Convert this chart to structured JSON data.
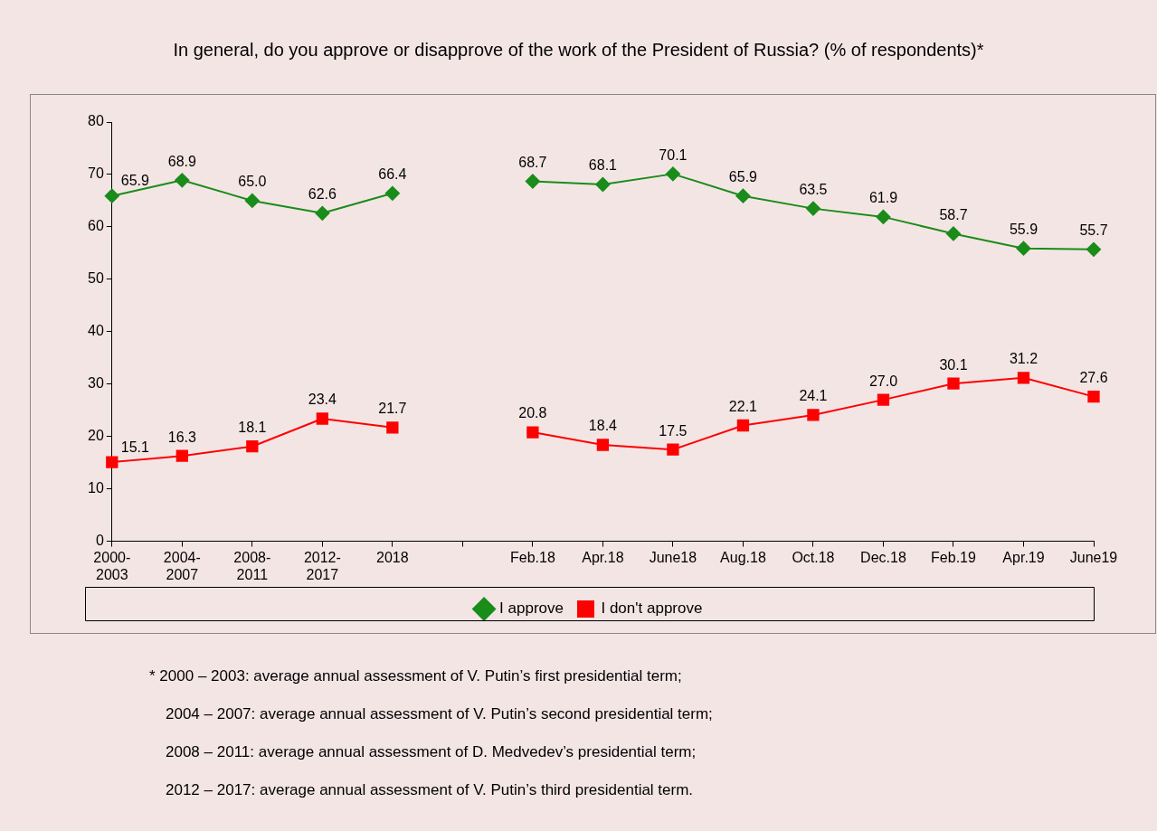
{
  "chart_data": {
    "type": "line",
    "title": "In general, do you approve or disapprove of the work of the President of Russia? (% of respondents)*",
    "categories": [
      "2000-2003",
      "2004-2007",
      "2008-2011",
      "2012-2017",
      "2018",
      null,
      "Feb.18",
      "Apr.18",
      "June18",
      "Aug.18",
      "Oct.18",
      "Dec.18",
      "Feb.19",
      "Apr.19",
      "June19"
    ],
    "series": [
      {
        "name": "I approve",
        "color": "#1a8c1a",
        "marker": "diamond",
        "values": [
          65.9,
          68.9,
          65.0,
          62.6,
          66.4,
          null,
          68.7,
          68.1,
          70.1,
          65.9,
          63.5,
          61.9,
          58.7,
          55.9,
          55.7
        ],
        "value_labels": [
          "65.9",
          "68.9",
          "65.0",
          "62.6",
          "66.4",
          null,
          "68.7",
          "68.1",
          "70.1",
          "65.9",
          "63.5",
          "61.9",
          "58.7",
          "55.9",
          "55.7"
        ]
      },
      {
        "name": "I don't approve",
        "color": "#ff0000",
        "marker": "square",
        "values": [
          15.1,
          16.3,
          18.1,
          23.4,
          21.7,
          null,
          20.8,
          18.4,
          17.5,
          22.1,
          24.1,
          27.0,
          30.1,
          31.2,
          27.6
        ],
        "value_labels": [
          "15.1",
          "16.3",
          "18.1",
          "23.4",
          "21.7",
          null,
          "20.8",
          "18.4",
          "17.5",
          "22.1",
          "24.1",
          "27.0",
          "30.1",
          "31.2",
          "27.6"
        ]
      }
    ],
    "ylim": [
      0,
      80
    ],
    "yticks": [
      0,
      10,
      20,
      30,
      40,
      50,
      60,
      70,
      80
    ],
    "grid": false,
    "legend": "bottom",
    "annotations": [
      "* 2000 – 2003: average annual assessment of V. Putin’s first presidential term;",
      "2004 – 2007: average annual assessment of V. Putin’s second presidential term;",
      "2008 – 2011: average annual assessment of D. Medvedev’s presidential term;",
      "2012 – 2017: average annual assessment of V. Putin’s third presidential term."
    ]
  }
}
